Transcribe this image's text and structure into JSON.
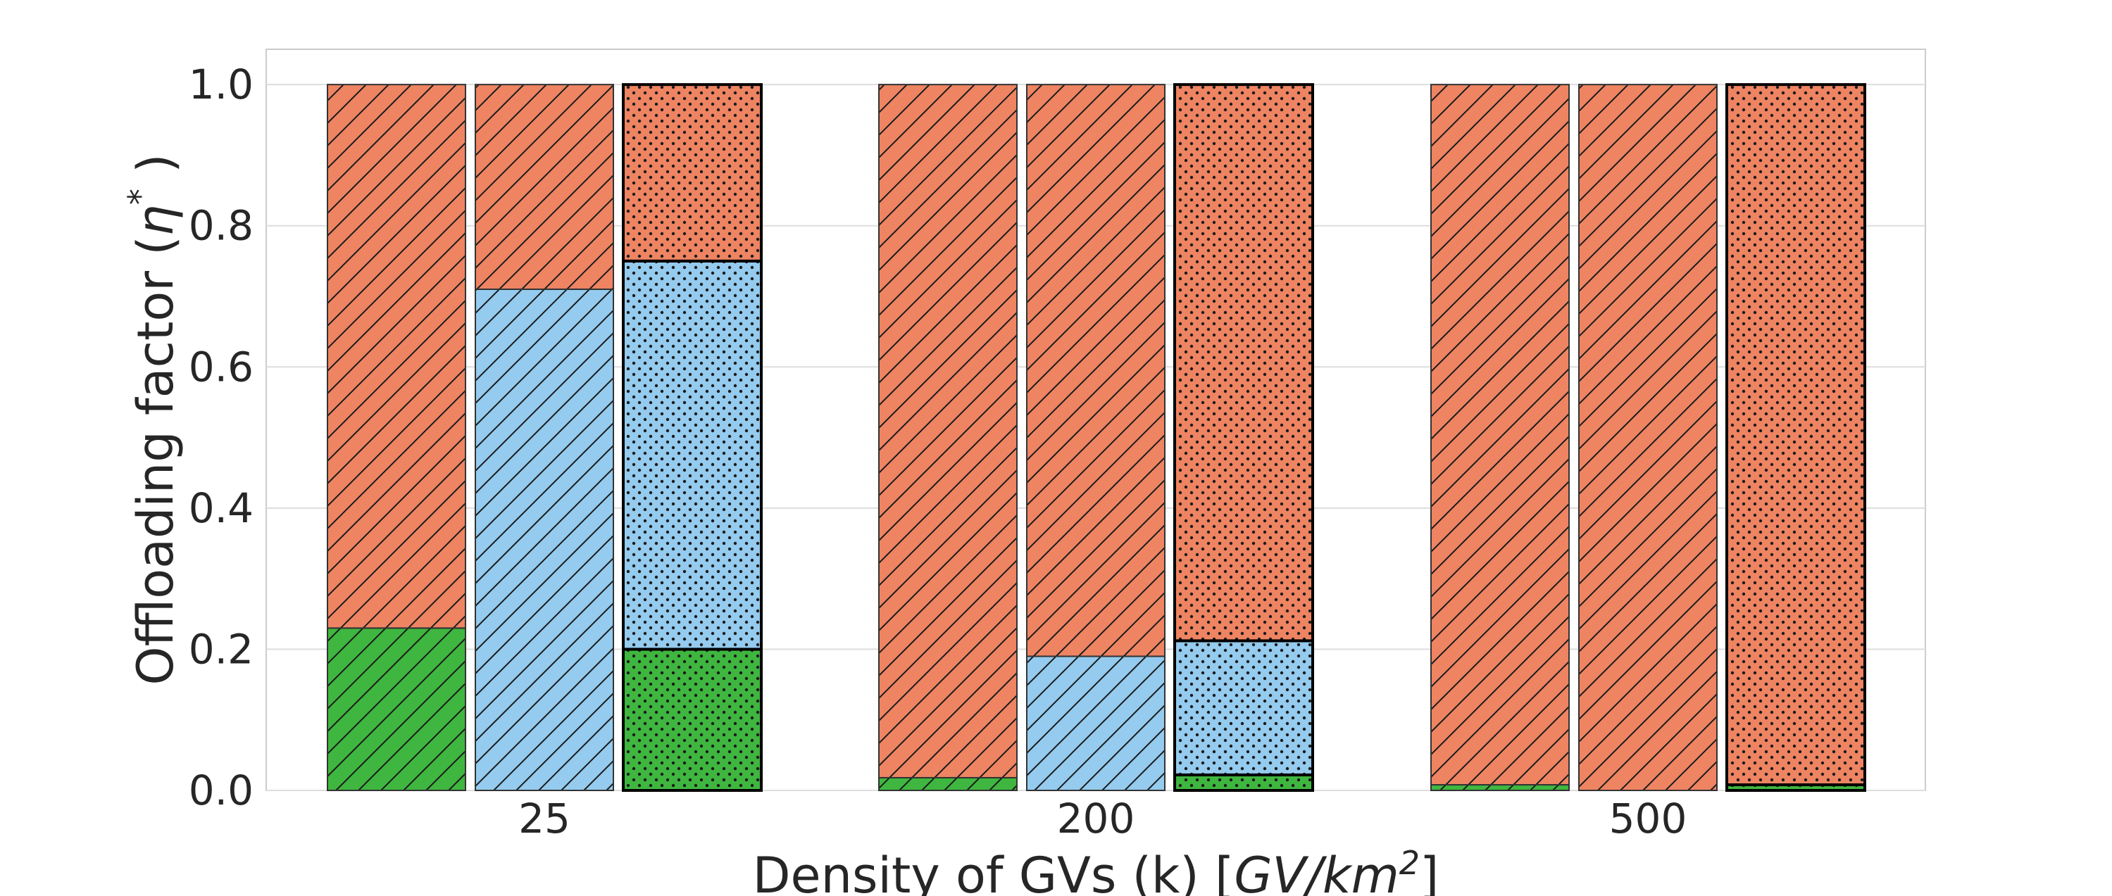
{
  "chart_data": {
    "type": "bar",
    "stacked": true,
    "title": "",
    "xlabel": {
      "main": "Density of GVs (k) [",
      "math_unit_base": "GV/km",
      "math_unit_exp": "2",
      "suffix": "]"
    },
    "ylabel": {
      "main": "Offloading factor (",
      "math_symbol": "η",
      "math_sup": "*",
      "suffix": " )"
    },
    "ylim": [
      0,
      1.05
    ],
    "yticks": [
      "0.0",
      "0.2",
      "0.4",
      "0.6",
      "0.8",
      "1.0"
    ],
    "categories": [
      "25",
      "200",
      "500"
    ],
    "bars_per_group": 3,
    "bar_hatches": [
      "diagonal",
      "diagonal",
      "dots"
    ],
    "series": [
      {
        "name": "green",
        "color": "#3fb63f",
        "values": [
          [
            0.23,
            0.0,
            0.2
          ],
          [
            0.018,
            0.0,
            0.022
          ],
          [
            0.008,
            0.0,
            0.008
          ]
        ]
      },
      {
        "name": "blue",
        "color": "#94cbee",
        "values": [
          [
            0.0,
            0.71,
            0.55
          ],
          [
            0.0,
            0.19,
            0.19
          ],
          [
            0.0,
            0.0,
            0.0
          ]
        ]
      },
      {
        "name": "orange",
        "color": "#ee8462",
        "values": [
          [
            0.77,
            0.29,
            0.25
          ],
          [
            0.982,
            0.81,
            0.788
          ],
          [
            0.992,
            1.0,
            0.992
          ]
        ]
      }
    ],
    "grid": true,
    "legend": "none"
  }
}
